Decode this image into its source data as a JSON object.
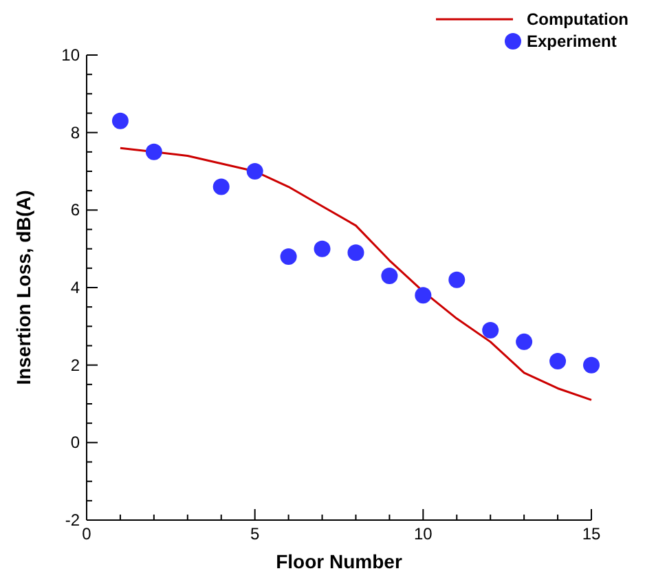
{
  "chart_data": {
    "type": "line",
    "xlabel": "Floor Number",
    "ylabel": "Insertion Loss, dB(A)",
    "xlim": [
      0,
      15
    ],
    "ylim": [
      -2,
      10
    ],
    "xticks": [
      0,
      {
        "value": 1,
        "label": null
      },
      {
        "value": 2,
        "label": null
      },
      {
        "value": 3,
        "label": null
      },
      {
        "value": 4,
        "label": null
      },
      5,
      {
        "value": 6,
        "label": null
      },
      {
        "value": 7,
        "label": null
      },
      {
        "value": 8,
        "label": null
      },
      {
        "value": 9,
        "label": null
      },
      10,
      {
        "value": 11,
        "label": null
      },
      {
        "value": 12,
        "label": null
      },
      {
        "value": 13,
        "label": null
      },
      {
        "value": 14,
        "label": null
      },
      15
    ],
    "yticks": [
      -2,
      {
        "value": -1.5,
        "label": null
      },
      {
        "value": -1,
        "label": null
      },
      {
        "value": -0.5,
        "label": null
      },
      0,
      {
        "value": 0.5,
        "label": null
      },
      {
        "value": 1,
        "label": null
      },
      {
        "value": 1.5,
        "label": null
      },
      2,
      {
        "value": 2.5,
        "label": null
      },
      {
        "value": 3,
        "label": null
      },
      {
        "value": 3.5,
        "label": null
      },
      4,
      {
        "value": 4.5,
        "label": null
      },
      {
        "value": 5,
        "label": null
      },
      {
        "value": 5.5,
        "label": null
      },
      6,
      {
        "value": 6.5,
        "label": null
      },
      {
        "value": 7,
        "label": null
      },
      {
        "value": 7.5,
        "label": null
      },
      8,
      {
        "value": 8.5,
        "label": null
      },
      {
        "value": 9,
        "label": null
      },
      {
        "value": 9.5,
        "label": null
      },
      10
    ],
    "legend": "top right",
    "grid": false,
    "series": [
      {
        "name": "Computation",
        "color": "#cc0000",
        "marker": "none",
        "x": [
          1,
          2,
          3,
          4,
          5,
          6,
          7,
          8,
          9,
          10,
          11,
          12,
          13,
          14,
          15
        ],
        "values": [
          7.6,
          7.5,
          7.4,
          7.2,
          7.0,
          6.6,
          6.1,
          5.6,
          4.7,
          3.9,
          3.2,
          2.6,
          1.8,
          1.4,
          1.1
        ]
      },
      {
        "name": "Experiment",
        "type": "scatter",
        "color": "#3333ff",
        "marker": "circle",
        "x": [
          1,
          2,
          4,
          5,
          6,
          7,
          8,
          9,
          10,
          11,
          12,
          13,
          14,
          15
        ],
        "values": [
          8.3,
          7.5,
          6.6,
          7.0,
          4.8,
          5.0,
          4.9,
          4.3,
          3.8,
          4.2,
          2.9,
          2.6,
          2.1,
          2.0
        ]
      }
    ]
  }
}
